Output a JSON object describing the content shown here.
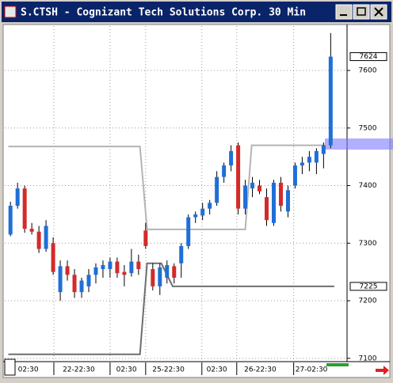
{
  "chart_data": {
    "type": "candlestick",
    "title": "S.CTSH - Cognizant Tech Solutions Corp. 30 Min",
    "open": [
      7315,
      7365,
      7395,
      7325,
      7320,
      7290,
      7300,
      7215,
      7260,
      7245,
      7215,
      7225,
      7245,
      7255,
      7255,
      7268,
      7250,
      7248,
      7268,
      7322,
      7255,
      7225,
      7240,
      7260,
      7265,
      7295,
      7345,
      7348,
      7360,
      7370,
      7415,
      7435,
      7470,
      7360,
      7395,
      7400,
      7380,
      7335,
      7405,
      7355,
      7400,
      7435,
      7440,
      7440,
      7455,
      7470
    ],
    "high": [
      7372,
      7405,
      7400,
      7335,
      7330,
      7340,
      7310,
      7270,
      7270,
      7255,
      7240,
      7255,
      7265,
      7270,
      7275,
      7275,
      7262,
      7290,
      7280,
      7335,
      7265,
      7265,
      7270,
      7265,
      7300,
      7350,
      7355,
      7370,
      7375,
      7425,
      7440,
      7470,
      7475,
      7410,
      7415,
      7410,
      7395,
      7410,
      7415,
      7400,
      7440,
      7450,
      7460,
      7465,
      7475,
      7665
    ],
    "low": [
      7312,
      7360,
      7318,
      7315,
      7283,
      7285,
      7245,
      7200,
      7235,
      7205,
      7205,
      7215,
      7230,
      7240,
      7240,
      7240,
      7225,
      7242,
      7245,
      7290,
      7218,
      7210,
      7230,
      7230,
      7240,
      7290,
      7335,
      7340,
      7350,
      7365,
      7405,
      7425,
      7350,
      7350,
      7380,
      7385,
      7330,
      7330,
      7355,
      7345,
      7395,
      7420,
      7425,
      7420,
      7430,
      7465
    ],
    "close": [
      7365,
      7395,
      7325,
      7320,
      7290,
      7330,
      7250,
      7260,
      7245,
      7215,
      7235,
      7245,
      7258,
      7262,
      7268,
      7248,
      7245,
      7268,
      7255,
      7295,
      7225,
      7258,
      7262,
      7240,
      7295,
      7345,
      7350,
      7360,
      7370,
      7415,
      7435,
      7460,
      7360,
      7400,
      7405,
      7390,
      7340,
      7405,
      7365,
      7392,
      7435,
      7440,
      7450,
      7460,
      7470,
      7624
    ],
    "up_color": "#1f6fd6",
    "down_color": "#d42a2a",
    "lines": [
      {
        "color": "#b4b4b4",
        "x": [
          -0.3,
          18.2,
          19.2,
          33.0,
          33.9,
          44.5
        ],
        "values": [
          7468,
          7468,
          7324,
          7324,
          7470,
          7470
        ]
      },
      {
        "color": "#6e6e6e",
        "x": [
          -0.3,
          18.2,
          19.2,
          21.2,
          22.8,
          45.5
        ],
        "values": [
          7107,
          7107,
          7265,
          7265,
          7225,
          7225
        ]
      }
    ],
    "price_markers": [
      7624,
      7225
    ],
    "ylim": [
      7097,
      7677
    ],
    "yticks": [
      7100,
      7200,
      7300,
      7400,
      7500,
      7600
    ],
    "xlim": [
      -0.8,
      47.3
    ],
    "xticks": [
      {
        "value": 2.5,
        "label": "02:30"
      },
      {
        "value": 9.6,
        "label": "22-22:30"
      },
      {
        "value": 16.3,
        "label": "02:30"
      },
      {
        "value": 22.2,
        "label": "25-22:30"
      },
      {
        "value": 29,
        "label": "02:30"
      },
      {
        "value": 35.1,
        "label": "26-22:30"
      },
      {
        "value": 42.3,
        "label": "27-02:30"
      }
    ],
    "xgrid": [
      6.1,
      14,
      19,
      26.9,
      31.8,
      39.8
    ],
    "grid": true
  }
}
